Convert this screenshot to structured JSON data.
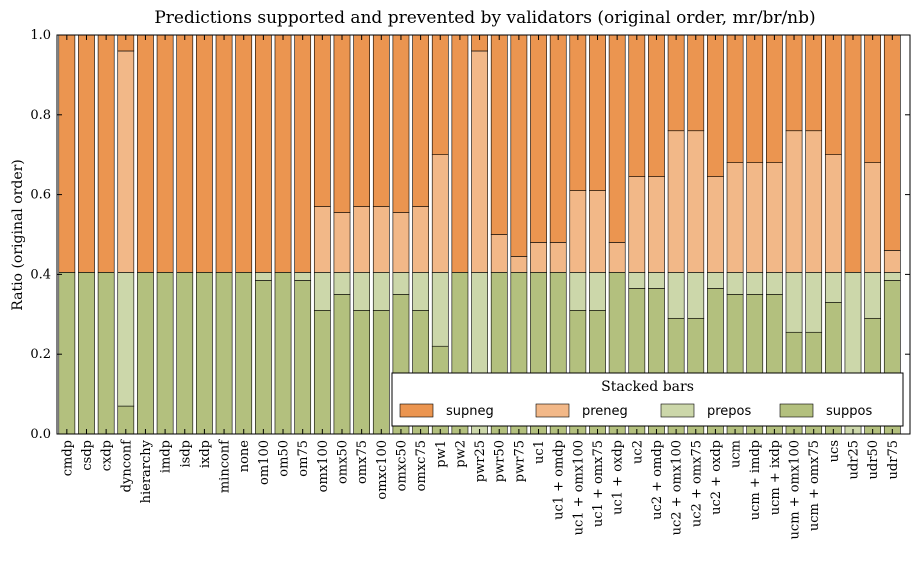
{
  "chart_data": {
    "type": "bar",
    "stacked": true,
    "title": "Predictions supported and prevented by validators (original order, mr/br/nb)",
    "xlabel": "",
    "ylabel": "Ratio (original order)",
    "ylim": [
      0,
      1
    ],
    "yticks": [
      "0.0",
      "0.2",
      "0.4",
      "0.6",
      "0.8",
      "1.0"
    ],
    "grid": false,
    "categories": [
      "cmdp",
      "csdp",
      "cxdp",
      "dynconf",
      "hierarchy",
      "imdp",
      "isdp",
      "ixdp",
      "minconf",
      "none",
      "om100",
      "om50",
      "om75",
      "omx100",
      "omx50",
      "omx75",
      "omxc100",
      "omxc50",
      "omxc75",
      "pw1",
      "pw2",
      "pwr25",
      "pwr50",
      "pwr75",
      "uc1",
      "uc1 + omdp",
      "uc1 + omx100",
      "uc1 + omx75",
      "uc1 + oxdp",
      "uc2",
      "uc2 + omdp",
      "uc2 + omx100",
      "uc2 + omx75",
      "uc2 + oxdp",
      "ucm",
      "ucm + imdp",
      "ucm + ixdp",
      "ucm + omx100",
      "ucm + omx75",
      "ucs",
      "udr25",
      "udr50",
      "udr75"
    ],
    "series": [
      {
        "name": "suppos",
        "color": "#b3c07e",
        "values": [
          0.405,
          0.405,
          0.405,
          0.07,
          0.405,
          0.405,
          0.405,
          0.405,
          0.405,
          0.405,
          0.385,
          0.405,
          0.385,
          0.31,
          0.35,
          0.31,
          0.31,
          0.35,
          0.31,
          0.22,
          0.405,
          0.0,
          0.405,
          0.405,
          0.405,
          0.405,
          0.31,
          0.31,
          0.405,
          0.365,
          0.365,
          0.29,
          0.29,
          0.365,
          0.35,
          0.35,
          0.35,
          0.255,
          0.255,
          0.33,
          0.0,
          0.29,
          0.385
        ]
      },
      {
        "name": "prepos",
        "color": "#ccd7aa",
        "values": [
          0.0,
          0.0,
          0.0,
          0.335,
          0.0,
          0.0,
          0.0,
          0.0,
          0.0,
          0.0,
          0.02,
          0.0,
          0.02,
          0.095,
          0.055,
          0.095,
          0.095,
          0.055,
          0.095,
          0.185,
          0.0,
          0.405,
          0.0,
          0.0,
          0.0,
          0.0,
          0.095,
          0.095,
          0.0,
          0.04,
          0.04,
          0.115,
          0.115,
          0.04,
          0.055,
          0.055,
          0.055,
          0.15,
          0.15,
          0.075,
          0.405,
          0.115,
          0.02
        ]
      },
      {
        "name": "preneg",
        "color": "#f2b888",
        "values": [
          0.0,
          0.0,
          0.0,
          0.555,
          0.0,
          0.0,
          0.0,
          0.0,
          0.0,
          0.0,
          0.0,
          0.0,
          0.0,
          0.165,
          0.15,
          0.165,
          0.165,
          0.15,
          0.165,
          0.295,
          0.0,
          0.555,
          0.095,
          0.04,
          0.075,
          0.075,
          0.205,
          0.205,
          0.075,
          0.24,
          0.24,
          0.355,
          0.355,
          0.24,
          0.275,
          0.275,
          0.275,
          0.355,
          0.355,
          0.295,
          0.0,
          0.275,
          0.055
        ]
      },
      {
        "name": "supneg",
        "color": "#eb9550",
        "values": [
          0.595,
          0.595,
          0.595,
          0.04,
          0.595,
          0.595,
          0.595,
          0.595,
          0.595,
          0.595,
          0.595,
          0.595,
          0.595,
          0.43,
          0.445,
          0.43,
          0.43,
          0.445,
          0.43,
          0.3,
          0.595,
          0.04,
          0.5,
          0.555,
          0.52,
          0.52,
          0.39,
          0.39,
          0.52,
          0.355,
          0.355,
          0.24,
          0.24,
          0.355,
          0.32,
          0.32,
          0.32,
          0.24,
          0.24,
          0.3,
          0.595,
          0.32,
          0.54
        ]
      }
    ],
    "legend": {
      "title": "Stacked bars",
      "placement": "lower-right",
      "order": [
        "supneg",
        "preneg",
        "prepos",
        "suppos"
      ]
    }
  }
}
